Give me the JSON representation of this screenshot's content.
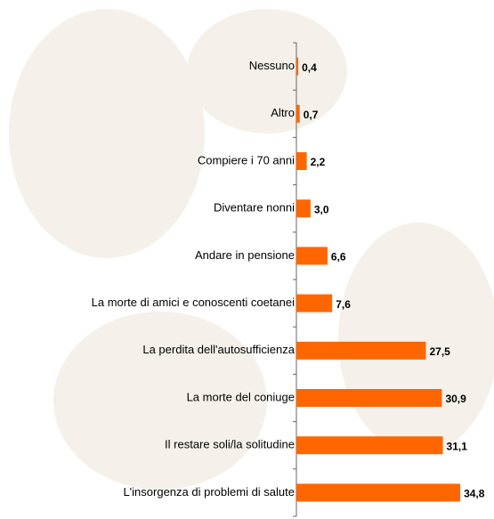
{
  "chart_data": {
    "type": "bar",
    "orientation": "horizontal",
    "color": "#ff6600",
    "categories": [
      "Nessuno",
      "Altro",
      "Compiere i 70 anni",
      "Diventare nonni",
      "Andare in pensione",
      "La morte di amici e conoscenti coetanei",
      "La perdita dell'autosufficienza",
      "La morte del coniuge",
      "Il restare soli/la solitudine",
      "L'insorgenza di problemi di salute"
    ],
    "values": [
      0.4,
      0.7,
      2.2,
      3.0,
      6.6,
      7.6,
      27.5,
      30.9,
      31.1,
      34.8
    ],
    "value_labels": [
      "0,4",
      "0,7",
      "2,2",
      "3,0",
      "6,6",
      "7,6",
      "27,5",
      "30,9",
      "31,1",
      "34,8"
    ]
  }
}
